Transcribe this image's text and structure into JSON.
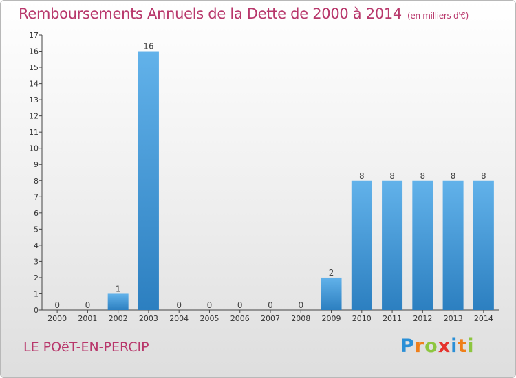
{
  "header": {
    "title": "Remboursements Annuels de la Dette de 2000 à 2014",
    "subtitle": "(en milliers d'€)"
  },
  "footer": {
    "town": "LE POëT-EN-PERCIP",
    "brand_letters": [
      "P",
      "r",
      "o",
      "x",
      "i",
      "t",
      "i"
    ],
    "brand_colors": [
      "#2a8fd6",
      "#ef7f1a",
      "#8dc63f",
      "#e5322d",
      "#2a8fd6",
      "#ef7f1a",
      "#8dc63f"
    ]
  },
  "chart_data": {
    "type": "bar",
    "title": "Remboursements Annuels de la Dette de 2000 à 2014",
    "subtitle": "(en milliers d'€)",
    "categories": [
      "2000",
      "2001",
      "2002",
      "2003",
      "2004",
      "2005",
      "2006",
      "2007",
      "2008",
      "2009",
      "2010",
      "2011",
      "2012",
      "2013",
      "2014"
    ],
    "values": [
      0,
      0,
      1,
      16,
      0,
      0,
      0,
      0,
      0,
      2,
      8,
      8,
      8,
      8,
      8
    ],
    "ylim": [
      0,
      17
    ],
    "yticks": [
      "0",
      "1",
      "2",
      "3",
      "4",
      "5",
      "6",
      "7",
      "8",
      "9",
      "10",
      "11",
      "12",
      "13",
      "14",
      "15",
      "16",
      "17"
    ],
    "grid": false,
    "legend": "none",
    "bar_color_top": "#62b2ea",
    "bar_color_bottom": "#2c7fc0"
  }
}
